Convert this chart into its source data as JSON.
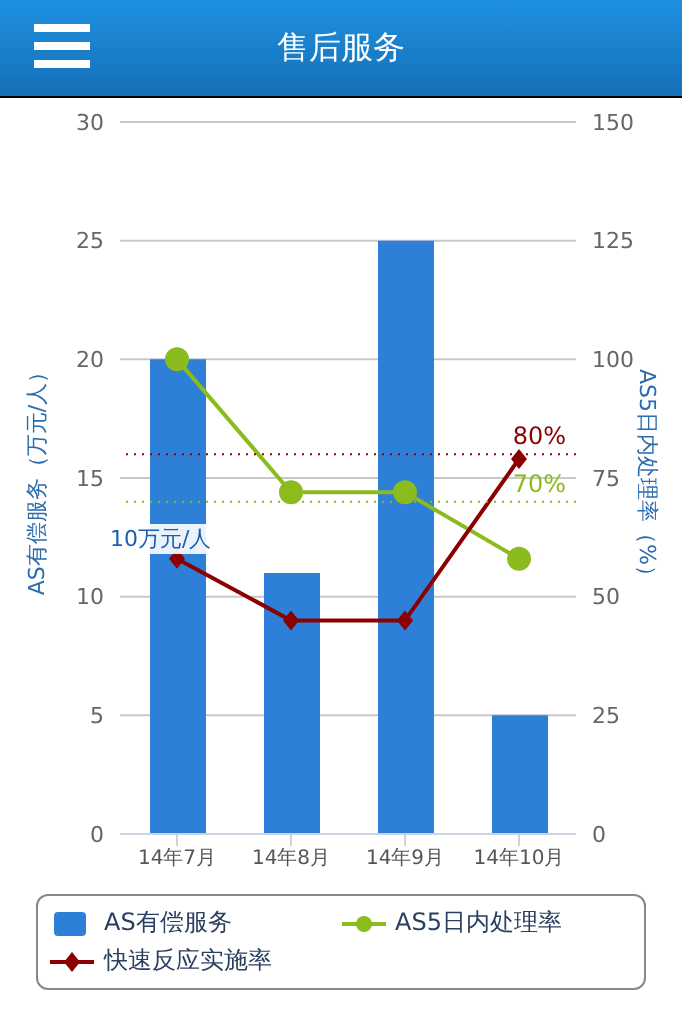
{
  "chart_data": {
    "type": "bar",
    "title": "售后服务",
    "categories": [
      "14年7月",
      "14年8月",
      "14年9月",
      "14年10月"
    ],
    "ylabel": "AS有偿服务（万元/人）",
    "y2label": "AS5日内处理率（%）",
    "ylim": [
      0,
      30
    ],
    "yticks": [
      0,
      5,
      10,
      15,
      20,
      25,
      30
    ],
    "y2lim": [
      0,
      150
    ],
    "y2ticks": [
      0,
      25,
      50,
      75,
      100,
      125,
      150
    ],
    "series": [
      {
        "name": "AS有偿服务",
        "color": "#2e7fd8",
        "values": [
          20,
          11,
          25,
          5
        ]
      },
      {
        "name": "AS5日内处理率",
        "type": "line",
        "axis": "y2",
        "marker": "circle",
        "color": "#8cbb1e",
        "values": [
          100,
          72,
          72,
          58
        ]
      },
      {
        "name": "快速反应实施率",
        "type": "line",
        "axis": "y2",
        "marker": "diamond",
        "color": "#8b0000",
        "values": [
          58,
          45,
          45,
          79
        ]
      }
    ],
    "ref_lines": [
      {
        "axis": "y2",
        "value": 80,
        "label": "80%",
        "color": "#8b0000",
        "line_style": "dotted"
      },
      {
        "axis": "y2",
        "value": 70,
        "label": "70%",
        "color": "#8cbb1e",
        "line_style": "dotted"
      }
    ],
    "annotations": [
      "10万元/人"
    ],
    "grid": "y",
    "legend": "bottom"
  }
}
